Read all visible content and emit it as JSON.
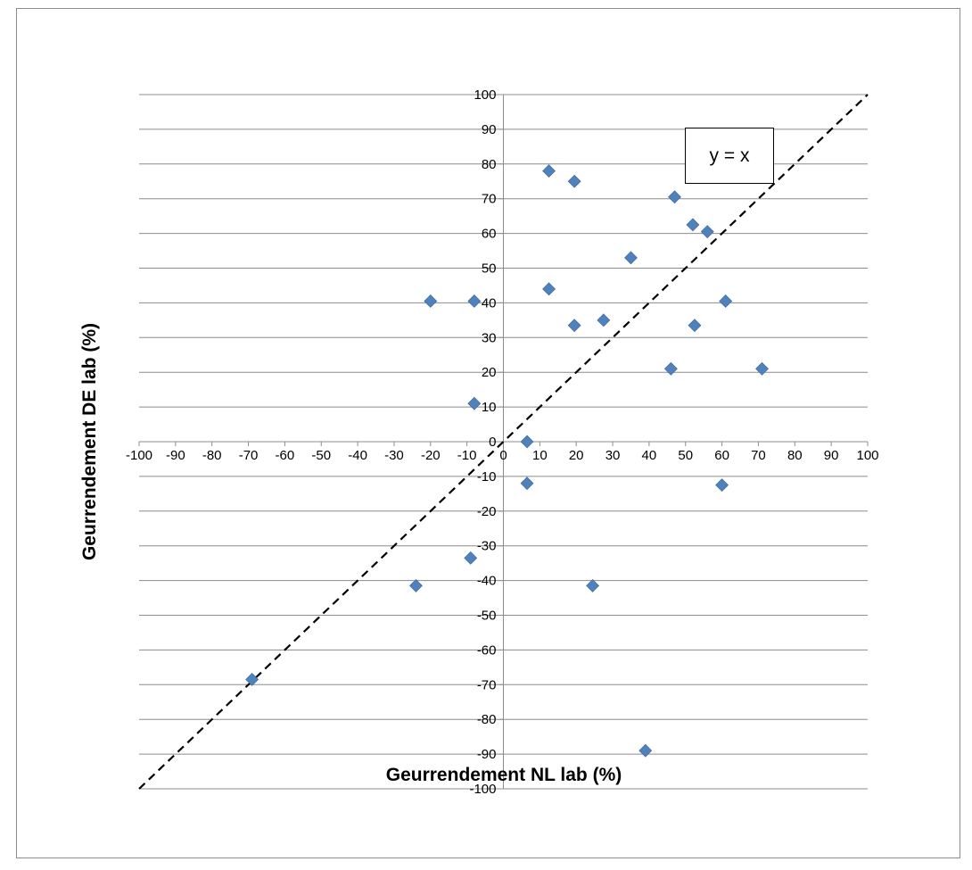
{
  "chart_data": {
    "type": "scatter",
    "xlabel": "Geurrendement NL lab (%)",
    "ylabel": "Geurrendement DE lab (%)",
    "xlim": [
      -100,
      100
    ],
    "ylim": [
      -100,
      100
    ],
    "x_ticks": [
      -100,
      -90,
      -80,
      -70,
      -60,
      -50,
      -40,
      -30,
      -20,
      -10,
      0,
      10,
      20,
      30,
      40,
      50,
      60,
      70,
      80,
      90,
      100
    ],
    "y_ticks": [
      100,
      90,
      80,
      70,
      60,
      50,
      40,
      30,
      20,
      10,
      0,
      -10,
      -20,
      -30,
      -40,
      -50,
      -60,
      -70,
      -80,
      -90,
      -100
    ],
    "grid": "horizontal",
    "marker": "diamond",
    "marker_color": "#4f81bd",
    "reference_line": {
      "label": "y = x",
      "style": "dashed",
      "color": "#000000",
      "from": [
        -100,
        -100
      ],
      "to": [
        100,
        100
      ]
    },
    "series": [
      {
        "x": [
          12.5,
          19.5,
          47,
          52,
          56,
          35,
          12.5,
          -20,
          -8,
          61,
          19.5,
          27.5,
          52.5,
          46,
          71,
          -8,
          6.5,
          6.5,
          60,
          -9,
          -24,
          24.5,
          -69,
          39
        ],
        "y": [
          78,
          75,
          70.5,
          62.5,
          60.5,
          53,
          44,
          40.5,
          40.5,
          40.5,
          33.5,
          35,
          33.5,
          21,
          21,
          11,
          0,
          -12,
          -12.5,
          -33.5,
          -41.5,
          -41.5,
          -68.5,
          -89
        ]
      }
    ]
  }
}
